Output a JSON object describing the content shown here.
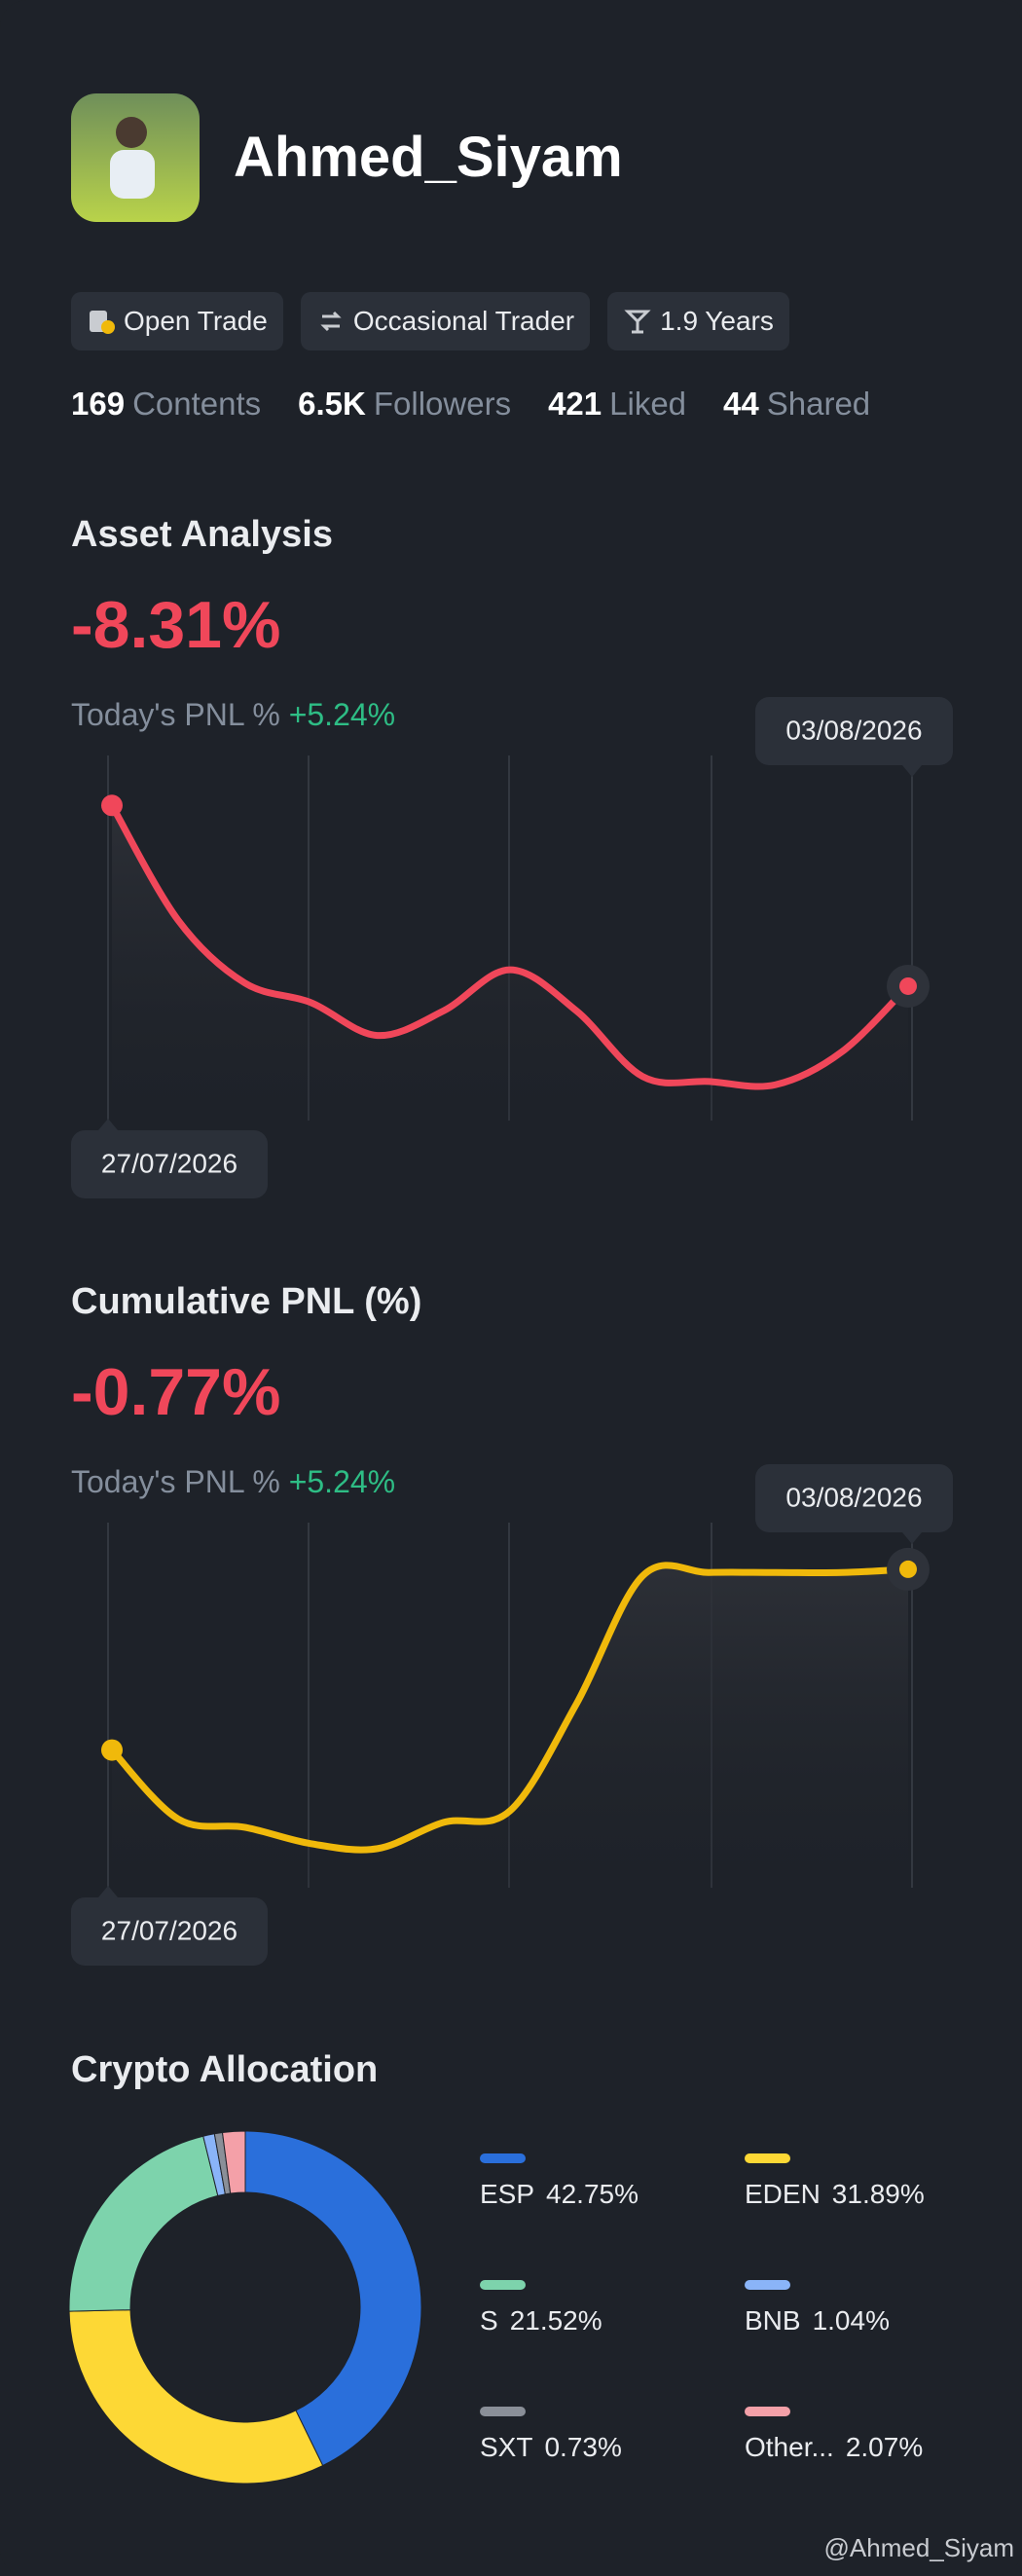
{
  "profile": {
    "name": "Ahmed_Siyam",
    "tags": [
      "Open Trade",
      "Occasional Trader",
      "1.9 Years"
    ],
    "stats": [
      {
        "value": "169",
        "label": "Contents"
      },
      {
        "value": "6.5K",
        "label": "Followers"
      },
      {
        "value": "421",
        "label": "Liked"
      },
      {
        "value": "44",
        "label": "Shared"
      }
    ]
  },
  "chart_data": [
    {
      "type": "line",
      "title": "Asset Analysis",
      "headline": "-8.31%",
      "subtitle": "Today's PNL %",
      "subtitle_value": "+5.24%",
      "start_label": "27/07/2026",
      "end_label": "03/08/2026",
      "color": "#f0475a",
      "values": [
        190,
        120,
        82,
        70,
        50,
        65,
        90,
        65,
        25,
        22,
        20,
        40,
        80
      ]
    },
    {
      "type": "line",
      "title": "Cumulative PNL (%)",
      "headline": "-0.77%",
      "subtitle": "Today's PNL %",
      "subtitle_value": "+5.24%",
      "start_label": "27/07/2026",
      "end_label": "03/08/2026",
      "color": "#f0b90b",
      "values": [
        82,
        40,
        35,
        25,
        22,
        38,
        45,
        110,
        188,
        190,
        190,
        190,
        192
      ]
    },
    {
      "type": "donut",
      "title": "Crypto Allocation",
      "categories": [
        "ESP",
        "EDEN",
        "S",
        "BNB",
        "SXT",
        "Other..."
      ],
      "values": [
        42.75,
        31.89,
        21.52,
        1.04,
        0.73,
        2.07
      ],
      "value_labels": [
        "42.75%",
        "31.89%",
        "21.52%",
        "1.04%",
        "0.73%",
        "2.07%"
      ],
      "colors": [
        "#2a6fdb",
        "#fdd835",
        "#7dd3ac",
        "#8ab4f8",
        "#8a8f98",
        "#f4a0a8"
      ]
    }
  ],
  "watermark": "@Ahmed_Siyam"
}
